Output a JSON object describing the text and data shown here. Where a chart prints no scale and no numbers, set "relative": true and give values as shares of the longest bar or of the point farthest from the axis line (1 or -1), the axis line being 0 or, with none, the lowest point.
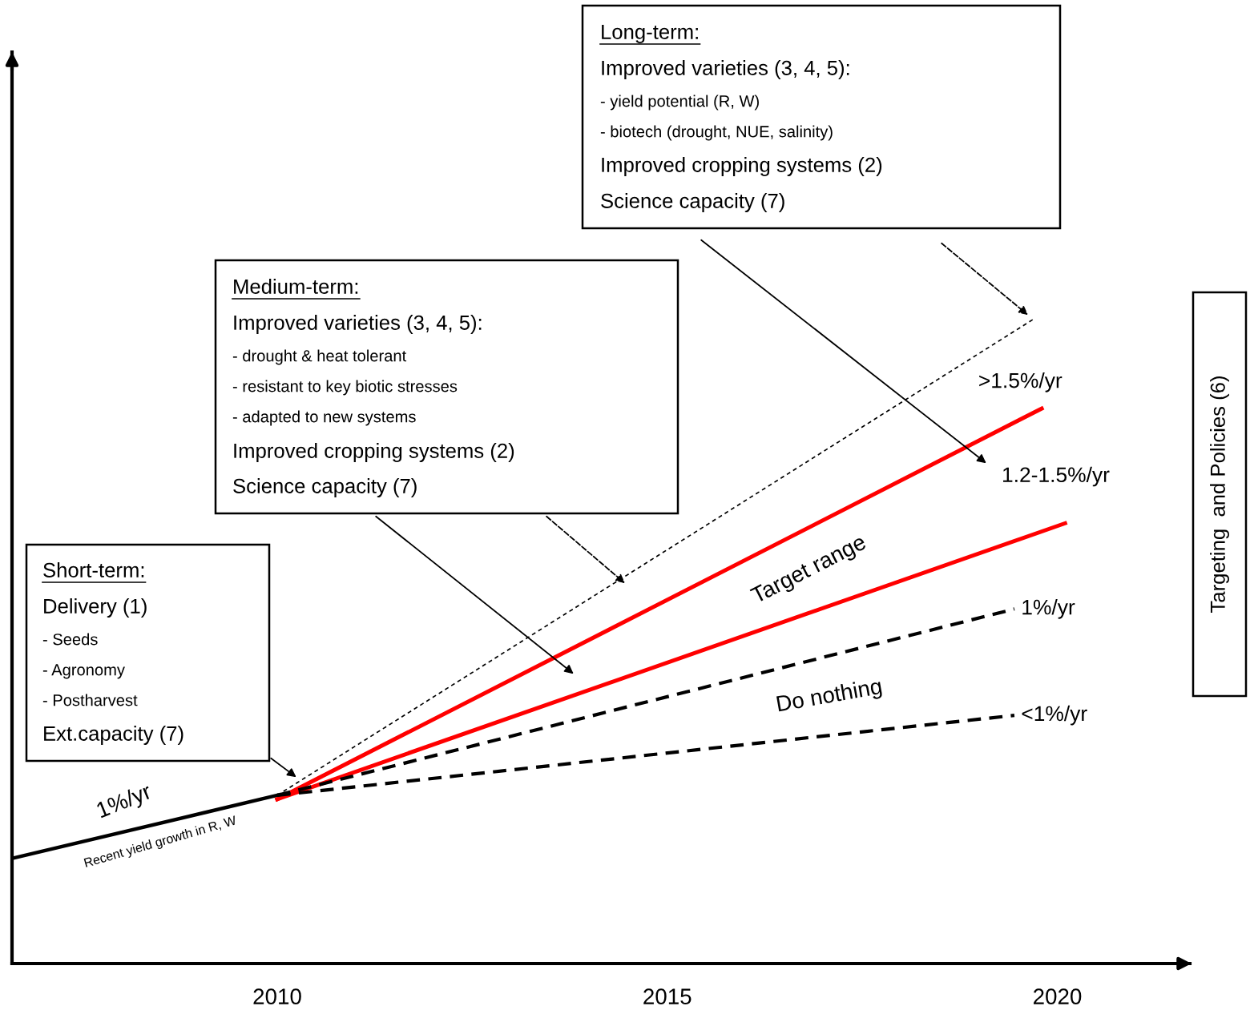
{
  "chart_data": {
    "type": "line",
    "relative": true,
    "xlim": [
      2006.6,
      2021.7
    ],
    "xticks": [
      2010,
      2015,
      2020
    ],
    "tick_labels": "x",
    "grid": false,
    "legend": false,
    "marker": "none",
    "series": [
      {
        "color": "#000000",
        "line_style": "solid",
        "x": [
          2006.6,
          2010
        ],
        "values": [
          0.163,
          0.261
        ]
      },
      {
        "name": ">1.5%/yr",
        "color": "#000000",
        "line_style": "dotted",
        "x": [
          2010,
          2019.7
        ],
        "values": [
          0.261,
          1.0
        ]
      },
      {
        "color": "#ff0000",
        "line_style": "solid",
        "x": [
          2010,
          2019.8
        ],
        "values": [
          0.255,
          0.861
        ]
      },
      {
        "color": "#ff0000",
        "line_style": "solid",
        "x": [
          2010,
          2020.1
        ],
        "values": [
          0.255,
          0.683
        ]
      },
      {
        "name": "1%/yr",
        "color": "#000000",
        "line_style": "dashed",
        "x": [
          2010,
          2019.45
        ],
        "values": [
          0.261,
          0.55
        ]
      },
      {
        "name": "<1%/yr",
        "color": "#000000",
        "line_style": "dashed",
        "x": [
          2010,
          2019.45
        ],
        "values": [
          0.261,
          0.385
        ]
      }
    ],
    "annotations": [
      "Long-term:",
      "Improved varieties (3, 4, 5):",
      "- yield potential (R, W)",
      "- biotech (drought, NUE, salinity)",
      "Improved cropping systems (2)",
      "Science capacity (7)",
      "Medium-term:",
      "Improved varieties (3, 4, 5):",
      "- drought & heat tolerant",
      "- resistant to key biotic stresses",
      "- adapted to new systems",
      "Improved cropping systems (2)",
      "Science capacity (7)",
      "Short-term:",
      "Delivery (1)",
      "- Seeds",
      "- Agronomy",
      "- Postharvest",
      "Ext.capacity (7)",
      "Targeting  and Policies (6)",
      "1.2-1.5%/yr",
      "Target range",
      "Do nothing",
      "1%/yr",
      "Recent yield growth in R, W"
    ]
  }
}
